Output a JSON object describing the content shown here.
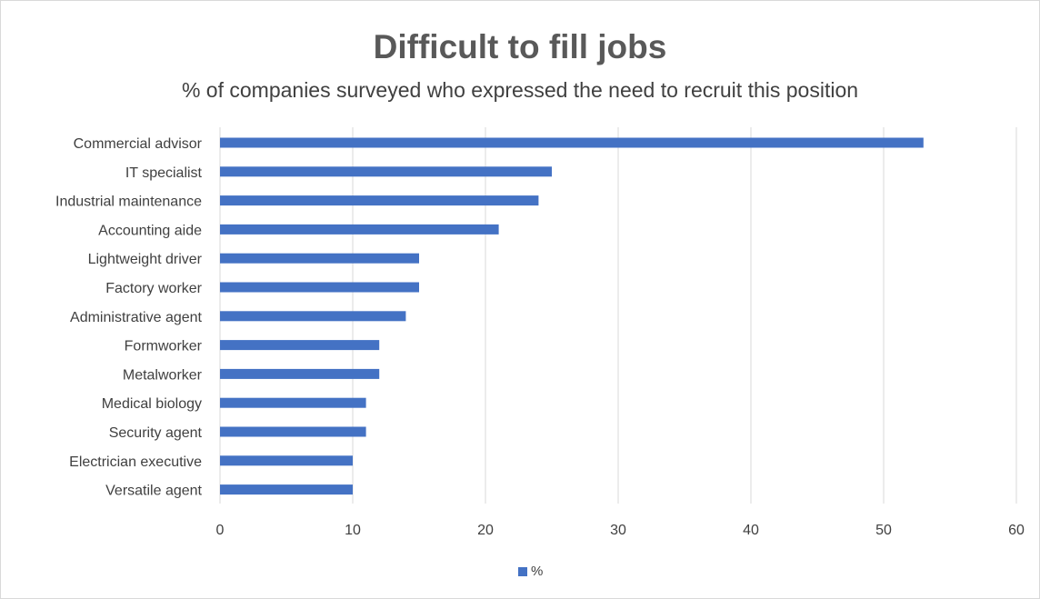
{
  "chart_data": {
    "type": "bar",
    "orientation": "horizontal",
    "title": "Difficult to fill jobs",
    "subtitle": "% of companies surveyed who expressed the need to recruit this position",
    "categories": [
      "Commercial advisor",
      "IT specialist",
      "Industrial maintenance",
      "Accounting aide",
      "Lightweight driver",
      "Factory worker",
      "Administrative agent",
      "Formworker",
      "Metalworker",
      "Medical biology",
      "Security agent",
      "Electrician executive",
      "Versatile agent"
    ],
    "series": [
      {
        "name": "%",
        "color": "#4472c4",
        "values": [
          53,
          25,
          24,
          21,
          15,
          15,
          14,
          12,
          12,
          11,
          11,
          10,
          10
        ]
      }
    ],
    "xlim": [
      0,
      60
    ],
    "xticks": [
      0,
      10,
      20,
      30,
      40,
      50,
      60
    ],
    "grid": true,
    "legend_position": "bottom"
  }
}
